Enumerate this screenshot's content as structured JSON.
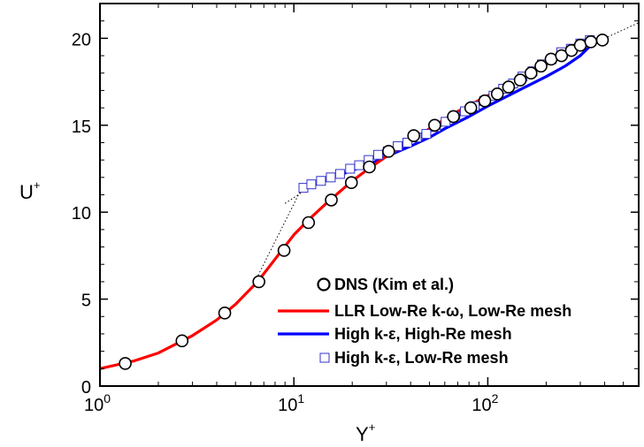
{
  "chart_data": {
    "type": "line",
    "title": "",
    "xlabel": "Y",
    "xlabel_sup": "+",
    "ylabel": "U",
    "ylabel_sup": "+",
    "x_scale": "log",
    "xlim": [
      1,
      600
    ],
    "ylim": [
      0,
      22
    ],
    "x_ticks": [
      {
        "value": 1,
        "base": "10",
        "exp": "0"
      },
      {
        "value": 10,
        "base": "10",
        "exp": "1"
      },
      {
        "value": 100,
        "base": "10",
        "exp": "2"
      }
    ],
    "y_ticks": [
      {
        "value": 0,
        "label": "0"
      },
      {
        "value": 5,
        "label": "5"
      },
      {
        "value": 10,
        "label": "10"
      },
      {
        "value": 15,
        "label": "15"
      },
      {
        "value": 20,
        "label": "20"
      }
    ],
    "legend_position": "bottom-right",
    "series": [
      {
        "name": "DNS (Kim et al.)",
        "kind": "markers",
        "marker": "circle",
        "color": "#000000",
        "points": [
          [
            1.35,
            1.3
          ],
          [
            2.65,
            2.6
          ],
          [
            4.4,
            4.2
          ],
          [
            6.6,
            6.0
          ],
          [
            8.9,
            7.8
          ],
          [
            11.9,
            9.4
          ],
          [
            15.6,
            10.7
          ],
          [
            19.8,
            11.7
          ],
          [
            24.5,
            12.6
          ],
          [
            30.8,
            13.5
          ],
          [
            41.5,
            14.4
          ],
          [
            53.2,
            15.0
          ],
          [
            66.5,
            15.5
          ],
          [
            81.7,
            16.0
          ],
          [
            96.5,
            16.4
          ],
          [
            112,
            16.8
          ],
          [
            128,
            17.2
          ],
          [
            147,
            17.6
          ],
          [
            167,
            18.0
          ],
          [
            188,
            18.4
          ],
          [
            212,
            18.8
          ],
          [
            240,
            19.0
          ],
          [
            270,
            19.3
          ],
          [
            300,
            19.6
          ],
          [
            340,
            19.8
          ],
          [
            390,
            19.9
          ]
        ]
      },
      {
        "name": "LLR Low-Re k-ω, Low-Re mesh",
        "kind": "line",
        "color": "#ff0000",
        "points": [
          [
            1.0,
            1.0
          ],
          [
            1.5,
            1.45
          ],
          [
            2.0,
            1.9
          ],
          [
            3.0,
            2.9
          ],
          [
            4.0,
            3.8
          ],
          [
            5.0,
            4.7
          ],
          [
            6.5,
            6.0
          ],
          [
            8.0,
            7.3
          ],
          [
            10.0,
            8.7
          ],
          [
            12.0,
            9.6
          ],
          [
            15.0,
            10.6
          ],
          [
            20.0,
            11.8
          ],
          [
            25.0,
            12.6
          ],
          [
            30.0,
            13.2
          ],
          [
            40.0,
            14.1
          ],
          [
            50.0,
            14.8
          ],
          [
            70.0,
            15.8
          ],
          [
            100.0,
            16.7
          ],
          [
            150.0,
            17.7
          ],
          [
            200.0,
            18.5
          ],
          [
            250.0,
            19.0
          ],
          [
            300.0,
            19.5
          ],
          [
            350.0,
            19.8
          ],
          [
            400.0,
            20.0
          ]
        ]
      },
      {
        "name": "High k-ε, High-Re mesh",
        "kind": "line",
        "color": "#0000ff",
        "points": [
          [
            11.0,
            11.3
          ],
          [
            13.0,
            11.6
          ],
          [
            16.0,
            12.0
          ],
          [
            20.0,
            12.4
          ],
          [
            25.0,
            12.8
          ],
          [
            30.0,
            13.2
          ],
          [
            40.0,
            13.8
          ],
          [
            50.0,
            14.3
          ],
          [
            60.0,
            14.8
          ],
          [
            80.0,
            15.5
          ],
          [
            100.0,
            16.1
          ],
          [
            150.0,
            17.1
          ],
          [
            200.0,
            17.8
          ],
          [
            250.0,
            18.4
          ],
          [
            300.0,
            19.0
          ],
          [
            340.0,
            19.6
          ],
          [
            380.0,
            19.9
          ],
          [
            410.0,
            20.0
          ]
        ]
      },
      {
        "name": "High k-ε, Low-Re mesh",
        "kind": "markers",
        "marker": "square",
        "color": "#3333cc",
        "points": [
          [
            11.2,
            11.4
          ],
          [
            12.3,
            11.6
          ],
          [
            13.8,
            11.8
          ],
          [
            15.5,
            12.0
          ],
          [
            17.3,
            12.2
          ],
          [
            19.5,
            12.5
          ],
          [
            21.7,
            12.7
          ],
          [
            24.3,
            13.0
          ],
          [
            27.2,
            13.3
          ],
          [
            30.5,
            13.5
          ],
          [
            34.3,
            13.8
          ],
          [
            38.5,
            14.0
          ],
          [
            43.0,
            14.3
          ],
          [
            48.2,
            14.5
          ],
          [
            54.0,
            14.9
          ],
          [
            60.6,
            15.2
          ],
          [
            68.0,
            15.5
          ],
          [
            76.2,
            15.8
          ],
          [
            85.5,
            16.1
          ],
          [
            95.8,
            16.4
          ],
          [
            107,
            16.7
          ],
          [
            120,
            17.1
          ],
          [
            135,
            17.4
          ],
          [
            151,
            17.8
          ],
          [
            170,
            18.1
          ],
          [
            190,
            18.5
          ],
          [
            213,
            18.8
          ],
          [
            239,
            19.2
          ],
          [
            268,
            19.4
          ],
          [
            300,
            19.7
          ],
          [
            336,
            19.9
          ]
        ]
      },
      {
        "kind": "dotted",
        "color": "#000000",
        "points": [
          [
            6.3,
            6.0
          ],
          [
            11.0,
            11.4
          ]
        ]
      },
      {
        "kind": "dotted",
        "color": "#000000",
        "points": [
          [
            9.0,
            10.5
          ],
          [
            11.2,
            11.2
          ]
        ]
      },
      {
        "kind": "dotted",
        "color": "#000000",
        "points": [
          [
            400,
            20.0
          ],
          [
            600,
            20.9
          ]
        ]
      }
    ]
  }
}
